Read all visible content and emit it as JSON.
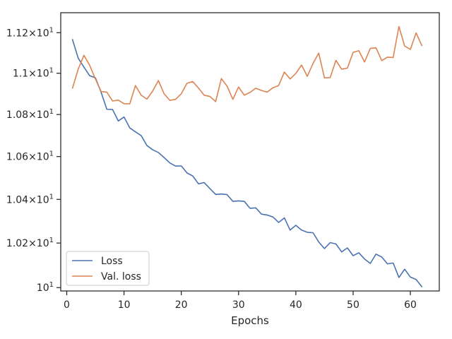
{
  "chart_data": {
    "type": "line",
    "title": "",
    "xlabel": "Epochs",
    "ylabel": "",
    "xlim": [
      -1.05,
      65.05
    ],
    "ylim": [
      9.985,
      11.3
    ],
    "yscale": "log",
    "grid": false,
    "legend_position": "lower-left",
    "xticks": [
      0,
      10,
      20,
      30,
      40,
      50,
      60
    ],
    "xtick_labels": [
      "0",
      "10",
      "20",
      "30",
      "40",
      "50",
      "60"
    ],
    "yticks": [
      10.0,
      10.2,
      10.4,
      10.6,
      10.8,
      11.0,
      11.2
    ],
    "ytick_labels": [
      "10^1",
      "1.02×10^1",
      "1.04×10^1",
      "1.06×10^1",
      "1.08×10^1",
      "1.1×10^1",
      "1.12×10^1"
    ],
    "x": [
      1,
      2,
      3,
      4,
      5,
      6,
      7,
      8,
      9,
      10,
      11,
      12,
      13,
      14,
      15,
      16,
      17,
      18,
      19,
      20,
      21,
      22,
      23,
      24,
      25,
      26,
      27,
      28,
      29,
      30,
      31,
      32,
      33,
      34,
      35,
      36,
      37,
      38,
      39,
      40,
      41,
      42,
      43,
      44,
      45,
      46,
      47,
      48,
      49,
      50,
      51,
      52,
      53,
      54,
      55,
      56,
      57,
      58,
      59,
      60,
      61,
      62
    ],
    "series": [
      {
        "name": "Loss",
        "color": "#4c72b0",
        "values": [
          11.166,
          11.074,
          11.03,
          10.988,
          10.978,
          10.907,
          10.825,
          10.824,
          10.769,
          10.788,
          10.736,
          10.717,
          10.699,
          10.652,
          10.632,
          10.619,
          10.595,
          10.57,
          10.555,
          10.556,
          10.523,
          10.509,
          10.472,
          10.478,
          10.45,
          10.423,
          10.425,
          10.422,
          10.391,
          10.393,
          10.391,
          10.359,
          10.361,
          10.332,
          10.328,
          10.319,
          10.294,
          10.315,
          10.259,
          10.281,
          10.259,
          10.249,
          10.247,
          10.205,
          10.175,
          10.202,
          10.196,
          10.16,
          10.178,
          10.143,
          10.156,
          10.128,
          10.108,
          10.15,
          10.137,
          10.106,
          10.11,
          10.045,
          10.082,
          10.047,
          10.036,
          10.004
        ]
      },
      {
        "name": "Val. loss",
        "color": "#dd8452",
        "values": [
          10.927,
          11.02,
          11.088,
          11.039,
          10.972,
          10.911,
          10.908,
          10.865,
          10.869,
          10.852,
          10.851,
          10.94,
          10.893,
          10.874,
          10.913,
          10.964,
          10.9,
          10.868,
          10.873,
          10.9,
          10.951,
          10.959,
          10.928,
          10.893,
          10.887,
          10.862,
          10.974,
          10.937,
          10.873,
          10.933,
          10.893,
          10.907,
          10.927,
          10.916,
          10.908,
          10.929,
          10.94,
          11.006,
          10.972,
          10.999,
          11.04,
          10.985,
          11.048,
          11.099,
          10.977,
          10.979,
          11.063,
          11.02,
          11.025,
          11.102,
          11.111,
          11.055,
          11.122,
          11.125,
          11.062,
          11.079,
          11.077,
          11.231,
          11.134,
          11.117,
          11.199,
          11.136
        ]
      }
    ]
  }
}
